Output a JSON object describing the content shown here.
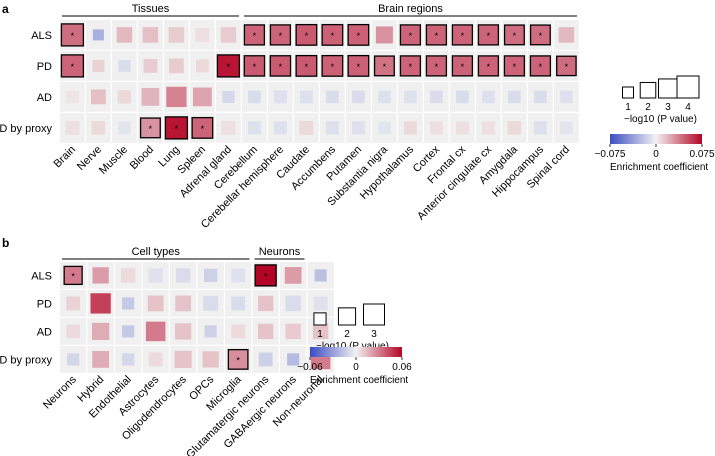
{
  "panel_a_letter": "a",
  "panel_b_letter": "b",
  "chart_data": [
    {
      "type": "heatmap",
      "panel": "a",
      "rows": [
        "ALS",
        "PD",
        "AD",
        "AD by proxy"
      ],
      "columns": [
        "Brain",
        "Nerve",
        "Muscle",
        "Blood",
        "Lung",
        "Spleen",
        "Adrenal gland",
        "Cerebellum",
        "Cerebellar hemisphere",
        "Caudate",
        "Accumbens",
        "Putamen",
        "Substantia nigra",
        "Hypothalamus",
        "Cortex",
        "Frontal cx",
        "Anterior cingulate cx",
        "Amygdala",
        "Hippocampus",
        "Spinal cord"
      ],
      "column_groups": [
        {
          "label": "Tissues",
          "start": 0,
          "end": 6
        },
        {
          "label": "Brain regions",
          "start": 7,
          "end": 19
        }
      ],
      "coefficient": [
        [
          0.042,
          -0.03,
          0.018,
          0.016,
          0.012,
          0.006,
          0.012,
          0.045,
          0.045,
          0.048,
          0.046,
          0.046,
          0.03,
          0.045,
          0.045,
          0.045,
          0.045,
          0.042,
          0.042,
          0.018
        ],
        [
          0.045,
          0.01,
          -0.01,
          0.012,
          0.012,
          0.008,
          0.07,
          0.048,
          0.048,
          0.048,
          0.046,
          0.046,
          0.04,
          0.045,
          0.045,
          0.045,
          0.045,
          0.045,
          0.045,
          0.042
        ],
        [
          0.004,
          0.016,
          0.008,
          0.02,
          0.035,
          0.025,
          -0.012,
          -0.01,
          -0.008,
          -0.008,
          -0.01,
          -0.01,
          -0.008,
          -0.008,
          -0.01,
          -0.01,
          -0.008,
          -0.01,
          -0.01,
          -0.008
        ],
        [
          0.006,
          0.008,
          -0.006,
          0.03,
          0.07,
          0.045,
          0.006,
          -0.008,
          -0.008,
          0.008,
          -0.008,
          -0.008,
          -0.006,
          0.008,
          0.006,
          0.006,
          0.006,
          0.008,
          -0.008,
          -0.006
        ]
      ],
      "neg_log10_p": [
        [
          4.0,
          1.0,
          2.0,
          2.0,
          2.0,
          1.6,
          2.0,
          3.3,
          3.3,
          3.5,
          3.5,
          3.5,
          2.4,
          3.3,
          3.3,
          3.3,
          3.3,
          3.2,
          3.2,
          2.0
        ],
        [
          4.0,
          1.2,
          1.2,
          1.6,
          1.8,
          1.4,
          4.0,
          3.4,
          3.4,
          3.5,
          3.5,
          3.5,
          3.2,
          3.3,
          3.3,
          3.3,
          3.3,
          3.3,
          3.3,
          3.1
        ],
        [
          1.4,
          1.8,
          1.5,
          2.6,
          3.4,
          2.9,
          1.2,
          1.3,
          1.4,
          1.4,
          1.3,
          1.3,
          1.3,
          1.3,
          1.3,
          1.3,
          1.3,
          1.3,
          1.3,
          1.3
        ],
        [
          1.6,
          1.5,
          1.3,
          3.2,
          4.0,
          3.5,
          1.6,
          1.4,
          1.4,
          1.6,
          1.4,
          1.4,
          1.3,
          1.4,
          1.4,
          1.4,
          1.4,
          1.5,
          1.4,
          1.3
        ]
      ],
      "significant": [
        [
          1,
          0,
          0,
          0,
          0,
          0,
          0,
          1,
          1,
          1,
          1,
          1,
          0,
          1,
          1,
          1,
          1,
          1,
          1,
          0
        ],
        [
          1,
          0,
          0,
          0,
          0,
          0,
          1,
          1,
          1,
          1,
          1,
          1,
          1,
          1,
          1,
          1,
          1,
          1,
          1,
          1
        ],
        [
          0,
          0,
          0,
          0,
          0,
          0,
          0,
          0,
          0,
          0,
          0,
          0,
          0,
          0,
          0,
          0,
          0,
          0,
          0,
          0
        ],
        [
          0,
          0,
          0,
          1,
          1,
          1,
          0,
          0,
          0,
          0,
          0,
          0,
          0,
          0,
          0,
          0,
          0,
          0,
          0,
          0
        ]
      ],
      "star_symbol": "*",
      "size_legend": {
        "label": "−log10 (P value)",
        "values": [
          1,
          2,
          3,
          4
        ]
      },
      "color_legend": {
        "label": "Enrichment coefficient",
        "min": -0.075,
        "max": 0.075,
        "tick_labels": [
          "−0.075",
          "0",
          "0.075"
        ]
      }
    },
    {
      "type": "heatmap",
      "panel": "b",
      "rows": [
        "ALS",
        "PD",
        "AD",
        "AD by proxy"
      ],
      "columns": [
        "Neurons",
        "Hybrid",
        "Endothelial",
        "Astrocytes",
        "Oligodendrocytes",
        "OPCs",
        "Microglia",
        "Glutamatergic neurons",
        "GABAergic neurons",
        "Non-neuronal"
      ],
      "column_groups": [
        {
          "label": "Cell types",
          "start": 0,
          "end": 6
        },
        {
          "label": "Neurons",
          "start": 7,
          "end": 8
        }
      ],
      "coefficient": [
        [
          0.03,
          0.022,
          0.006,
          -0.006,
          -0.008,
          -0.012,
          -0.006,
          0.06,
          0.022,
          -0.018
        ],
        [
          0.008,
          0.045,
          -0.015,
          0.012,
          0.012,
          -0.008,
          -0.008,
          0.012,
          -0.008,
          -0.006
        ],
        [
          0.006,
          0.018,
          -0.015,
          0.03,
          0.012,
          -0.012,
          0.006,
          0.012,
          0.01,
          0.012
        ],
        [
          -0.01,
          0.018,
          -0.01,
          0.006,
          0.012,
          0.012,
          0.025,
          -0.012,
          -0.02,
          0.03
        ]
      ],
      "neg_log10_p": [
        [
          2.2,
          1.8,
          1.4,
          1.4,
          1.4,
          1.2,
          1.3,
          3.0,
          1.9,
          1.0
        ],
        [
          1.3,
          2.8,
          1.0,
          1.7,
          1.7,
          1.5,
          1.3,
          1.6,
          1.6,
          1.3
        ],
        [
          1.3,
          2.0,
          1.0,
          2.6,
          1.8,
          1.0,
          1.3,
          1.6,
          1.6,
          1.6
        ],
        [
          1.0,
          1.9,
          1.0,
          1.3,
          2.0,
          1.8,
          2.6,
          1.3,
          1.0,
          2.6
        ]
      ],
      "significant": [
        [
          1,
          0,
          0,
          0,
          0,
          0,
          0,
          1,
          0,
          0
        ],
        [
          0,
          0,
          0,
          0,
          0,
          0,
          0,
          0,
          0,
          0
        ],
        [
          0,
          0,
          0,
          0,
          0,
          0,
          0,
          0,
          0,
          0
        ],
        [
          0,
          0,
          0,
          0,
          0,
          0,
          1,
          0,
          0,
          0
        ]
      ],
      "star_symbol": "*",
      "size_legend": {
        "label": "−log10 (P value)",
        "values": [
          1,
          2,
          3
        ]
      },
      "color_legend": {
        "label": "Enrichment coefficient",
        "min": -0.06,
        "max": 0.06,
        "tick_labels": [
          "−0.06",
          "0",
          "0.06"
        ]
      }
    }
  ]
}
